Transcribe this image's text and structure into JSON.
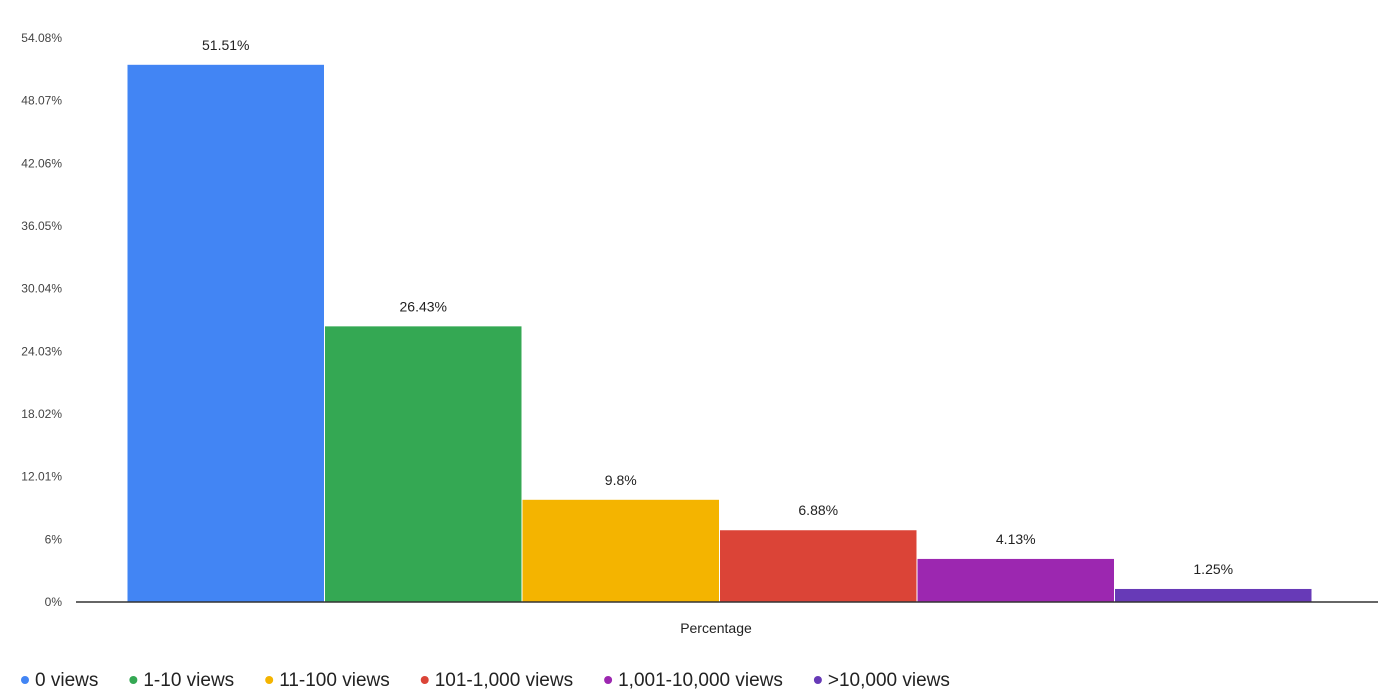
{
  "chart_data": {
    "type": "bar",
    "title": "",
    "xlabel": "Percentage",
    "ylabel": "",
    "ylim": [
      0,
      54.08
    ],
    "yticks": [
      "0%",
      "6%",
      "12.01%",
      "18.02%",
      "24.03%",
      "30.04%",
      "36.05%",
      "42.06%",
      "48.07%",
      "54.08%"
    ],
    "grid": false,
    "legend_position": "bottom",
    "series": [
      {
        "name": "0 views",
        "value": 51.51,
        "label": "51.51%",
        "color": "#4285f4"
      },
      {
        "name": "1-10 views",
        "value": 26.43,
        "label": "26.43%",
        "color": "#34a853"
      },
      {
        "name": "11-100 views",
        "value": 9.8,
        "label": "9.8%",
        "color": "#f4b400"
      },
      {
        "name": "101-1,000 views",
        "value": 6.88,
        "label": "6.88%",
        "color": "#db4437"
      },
      {
        "name": "1,001-10,000 views",
        "value": 4.13,
        "label": "4.13%",
        "color": "#9c27b0"
      },
      {
        "name": ">10,000 views",
        "value": 1.25,
        "label": "1.25%",
        "color": "#673ab7"
      }
    ]
  }
}
